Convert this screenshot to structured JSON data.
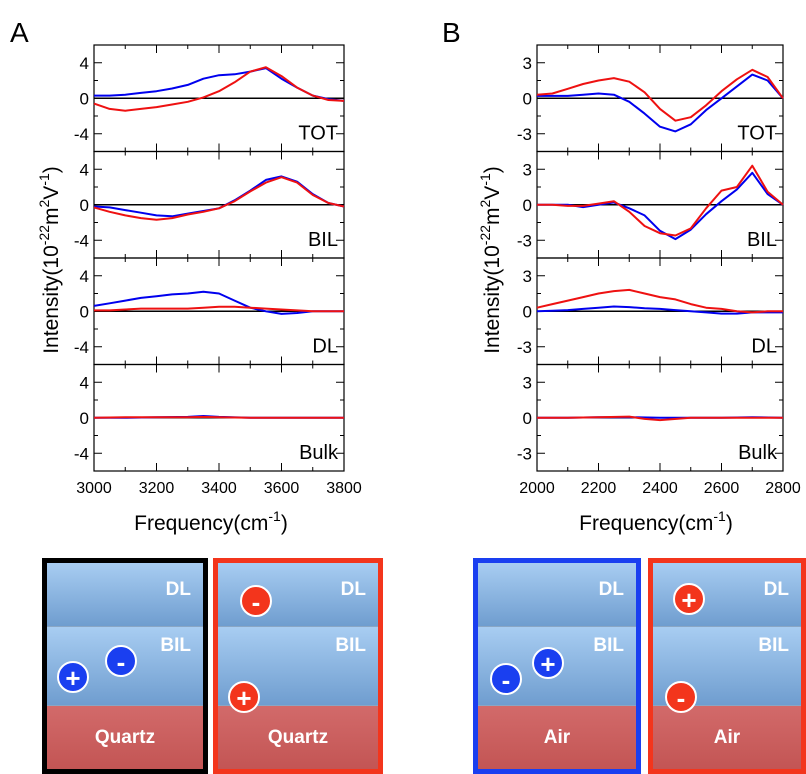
{
  "panel_letters": [
    "A",
    "B"
  ],
  "y_axis_label": {
    "main": "Intensity(10",
    "exp1": "-22",
    "unit1": "m",
    "exp2": "2",
    "unit2": "V",
    "exp3": "-1",
    "close": ")"
  },
  "x_axis_label": {
    "main": "Frequency(cm",
    "exp": "-1",
    "close": ")"
  },
  "colors": {
    "series1": "#0000ee",
    "series2": "#ee1111",
    "zero_line": "#000000",
    "blue_box": "#1a3ff0",
    "red_box": "#f3351c"
  },
  "chart_data": [
    {
      "type": "line",
      "panel": "A",
      "xlim": [
        3000,
        3800
      ],
      "xticks": [
        3000,
        3200,
        3400,
        3600,
        3800
      ],
      "subplots": [
        {
          "label": "TOT",
          "ylim": [
            -6,
            6
          ],
          "yticks": [
            -4,
            0,
            4
          ],
          "series": [
            {
              "color": "#0000ee",
              "x": [
                3000,
                3050,
                3100,
                3150,
                3200,
                3250,
                3300,
                3350,
                3400,
                3450,
                3500,
                3550,
                3600,
                3650,
                3700,
                3750,
                3800
              ],
              "y": [
                0.3,
                0.3,
                0.4,
                0.6,
                0.8,
                1.1,
                1.5,
                2.2,
                2.6,
                2.7,
                3.0,
                3.4,
                2.2,
                1.2,
                0.3,
                -0.1,
                -0.3
              ]
            },
            {
              "color": "#ee1111",
              "x": [
                3000,
                3050,
                3100,
                3150,
                3200,
                3250,
                3300,
                3350,
                3400,
                3450,
                3500,
                3550,
                3600,
                3650,
                3700,
                3750,
                3800
              ],
              "y": [
                -0.6,
                -1.2,
                -1.4,
                -1.2,
                -1.0,
                -0.7,
                -0.4,
                0.1,
                0.8,
                1.8,
                3.0,
                3.5,
                2.5,
                1.2,
                0.3,
                -0.2,
                -0.3
              ]
            }
          ]
        },
        {
          "label": "BIL",
          "ylim": [
            -6,
            6
          ],
          "yticks": [
            -4,
            0,
            4
          ],
          "series": [
            {
              "color": "#0000ee",
              "x": [
                3000,
                3050,
                3100,
                3150,
                3200,
                3250,
                3300,
                3350,
                3400,
                3450,
                3500,
                3550,
                3600,
                3650,
                3700,
                3750,
                3800
              ],
              "y": [
                -0.2,
                -0.3,
                -0.6,
                -0.9,
                -1.2,
                -1.3,
                -1.0,
                -0.7,
                -0.4,
                0.5,
                1.6,
                2.8,
                3.2,
                2.6,
                1.2,
                0.2,
                -0.2
              ]
            },
            {
              "color": "#ee1111",
              "x": [
                3000,
                3050,
                3100,
                3150,
                3200,
                3250,
                3300,
                3350,
                3400,
                3450,
                3500,
                3550,
                3600,
                3650,
                3700,
                3750,
                3800
              ],
              "y": [
                -0.3,
                -0.8,
                -1.2,
                -1.5,
                -1.7,
                -1.5,
                -1.1,
                -0.8,
                -0.4,
                0.4,
                1.5,
                2.5,
                3.1,
                2.5,
                1.1,
                0.2,
                -0.2
              ]
            }
          ]
        },
        {
          "label": "DL",
          "ylim": [
            -6,
            6
          ],
          "yticks": [
            -4,
            0,
            4
          ],
          "series": [
            {
              "color": "#0000ee",
              "x": [
                3000,
                3050,
                3100,
                3150,
                3200,
                3250,
                3300,
                3350,
                3400,
                3450,
                3500,
                3550,
                3600,
                3650,
                3700,
                3750,
                3800
              ],
              "y": [
                0.6,
                0.9,
                1.2,
                1.5,
                1.7,
                1.9,
                2.0,
                2.2,
                2.0,
                1.2,
                0.4,
                0.0,
                -0.3,
                -0.2,
                0.0,
                0.0,
                0.0
              ]
            },
            {
              "color": "#ee1111",
              "x": [
                3000,
                3050,
                3100,
                3150,
                3200,
                3250,
                3300,
                3350,
                3400,
                3450,
                3500,
                3550,
                3600,
                3650,
                3700,
                3750,
                3800
              ],
              "y": [
                0.1,
                0.1,
                0.2,
                0.3,
                0.3,
                0.3,
                0.3,
                0.4,
                0.5,
                0.5,
                0.4,
                0.3,
                0.2,
                0.1,
                0.0,
                0.0,
                0.0
              ]
            }
          ]
        },
        {
          "label": "Bulk",
          "ylim": [
            -6,
            6
          ],
          "yticks": [
            -4,
            0,
            4
          ],
          "series": [
            {
              "color": "#0000ee",
              "x": [
                3000,
                3100,
                3200,
                3300,
                3350,
                3400,
                3500,
                3600,
                3700,
                3800
              ],
              "y": [
                0.0,
                0.0,
                0.05,
                0.1,
                0.2,
                0.1,
                0.0,
                0.0,
                0.0,
                0.0
              ]
            },
            {
              "color": "#ee1111",
              "x": [
                3000,
                3100,
                3200,
                3300,
                3350,
                3400,
                3500,
                3600,
                3700,
                3800
              ],
              "y": [
                0.0,
                0.05,
                0.05,
                0.05,
                0.1,
                0.05,
                0.0,
                0.0,
                0.0,
                0.0
              ]
            }
          ]
        }
      ]
    },
    {
      "type": "line",
      "panel": "B",
      "xlim": [
        2000,
        2800
      ],
      "xticks": [
        2000,
        2200,
        2400,
        2600,
        2800
      ],
      "subplots": [
        {
          "label": "TOT",
          "ylim": [
            -4.5,
            4.5
          ],
          "yticks": [
            -3,
            0,
            3
          ],
          "series": [
            {
              "color": "#0000ee",
              "x": [
                2000,
                2050,
                2100,
                2150,
                2200,
                2250,
                2300,
                2350,
                2400,
                2450,
                2500,
                2550,
                2600,
                2650,
                2700,
                2750,
                2800
              ],
              "y": [
                0.2,
                0.2,
                0.2,
                0.3,
                0.4,
                0.3,
                -0.3,
                -1.3,
                -2.4,
                -2.8,
                -2.2,
                -1.0,
                0.0,
                1.0,
                2.0,
                1.5,
                0.0
              ]
            },
            {
              "color": "#ee1111",
              "x": [
                2000,
                2050,
                2100,
                2150,
                2200,
                2250,
                2300,
                2350,
                2400,
                2450,
                2500,
                2550,
                2600,
                2650,
                2700,
                2750,
                2800
              ],
              "y": [
                0.3,
                0.4,
                0.8,
                1.2,
                1.5,
                1.7,
                1.4,
                0.5,
                -0.9,
                -1.9,
                -1.6,
                -0.6,
                0.6,
                1.6,
                2.4,
                1.8,
                0.0
              ]
            }
          ]
        },
        {
          "label": "BIL",
          "ylim": [
            -4.5,
            4.5
          ],
          "yticks": [
            -3,
            0,
            3
          ],
          "series": [
            {
              "color": "#0000ee",
              "x": [
                2000,
                2050,
                2100,
                2150,
                2200,
                2250,
                2300,
                2350,
                2400,
                2450,
                2500,
                2550,
                2600,
                2650,
                2700,
                2750,
                2800
              ],
              "y": [
                0.0,
                0.0,
                0.0,
                -0.2,
                0.0,
                0.2,
                -0.3,
                -0.9,
                -2.2,
                -2.9,
                -2.1,
                -0.8,
                0.3,
                1.3,
                2.7,
                0.9,
                0.0
              ]
            },
            {
              "color": "#ee1111",
              "x": [
                2000,
                2050,
                2100,
                2150,
                2200,
                2250,
                2300,
                2350,
                2400,
                2450,
                2500,
                2550,
                2600,
                2650,
                2700,
                2750,
                2800
              ],
              "y": [
                0.0,
                0.0,
                -0.1,
                -0.1,
                0.1,
                0.3,
                -0.6,
                -1.8,
                -2.4,
                -2.6,
                -2.0,
                -0.3,
                1.2,
                1.5,
                3.3,
                1.1,
                0.0
              ]
            }
          ]
        },
        {
          "label": "DL",
          "ylim": [
            -4.5,
            4.5
          ],
          "yticks": [
            -3,
            0,
            3
          ],
          "series": [
            {
              "color": "#0000ee",
              "x": [
                2000,
                2050,
                2100,
                2150,
                2200,
                2250,
                2300,
                2350,
                2400,
                2450,
                2500,
                2550,
                2600,
                2650,
                2700,
                2750,
                2800
              ],
              "y": [
                0.0,
                0.05,
                0.1,
                0.2,
                0.3,
                0.4,
                0.35,
                0.25,
                0.2,
                0.1,
                0.0,
                -0.1,
                -0.2,
                -0.2,
                -0.1,
                -0.1,
                -0.1
              ]
            },
            {
              "color": "#ee1111",
              "x": [
                2000,
                2050,
                2100,
                2150,
                2200,
                2250,
                2300,
                2350,
                2400,
                2450,
                2500,
                2550,
                2600,
                2650,
                2700,
                2750,
                2800
              ],
              "y": [
                0.3,
                0.6,
                0.9,
                1.2,
                1.5,
                1.7,
                1.8,
                1.5,
                1.2,
                1.0,
                0.6,
                0.3,
                0.2,
                0.0,
                -0.1,
                0.0,
                0.0
              ]
            }
          ]
        },
        {
          "label": "Bulk",
          "ylim": [
            -4.5,
            4.5
          ],
          "yticks": [
            -3,
            0,
            3
          ],
          "series": [
            {
              "color": "#0000ee",
              "x": [
                2000,
                2100,
                2200,
                2300,
                2400,
                2500,
                2600,
                2700,
                2800
              ],
              "y": [
                0.0,
                0.0,
                0.05,
                0.05,
                0.0,
                0.0,
                0.0,
                0.05,
                0.0
              ]
            },
            {
              "color": "#ee1111",
              "x": [
                2000,
                2100,
                2200,
                2300,
                2350,
                2400,
                2500,
                2600,
                2700,
                2800
              ],
              "y": [
                0.0,
                0.0,
                0.05,
                0.1,
                -0.1,
                -0.2,
                0.0,
                0.0,
                0.0,
                0.0
              ]
            }
          ]
        }
      ]
    }
  ],
  "schematics": [
    {
      "border": "blue",
      "top_label": "DL",
      "mid_label": "BIL",
      "bottom_label": "Quartz",
      "ions": [
        {
          "sign": "+",
          "color": "blue"
        },
        {
          "sign": "-",
          "color": "blue"
        }
      ]
    },
    {
      "border": "red",
      "top_label": "DL",
      "mid_label": "BIL",
      "bottom_label": "Quartz",
      "ions": [
        {
          "sign": "-",
          "color": "red"
        },
        {
          "sign": "+",
          "color": "red"
        }
      ]
    },
    {
      "border": "blue",
      "top_label": "DL",
      "mid_label": "BIL",
      "bottom_label": "Air",
      "ions": [
        {
          "sign": "-",
          "color": "blue"
        },
        {
          "sign": "+",
          "color": "blue"
        }
      ]
    },
    {
      "border": "red",
      "top_label": "DL",
      "mid_label": "BIL",
      "bottom_label": "Air",
      "ions": [
        {
          "sign": "+",
          "color": "red"
        },
        {
          "sign": "-",
          "color": "red"
        }
      ]
    }
  ]
}
